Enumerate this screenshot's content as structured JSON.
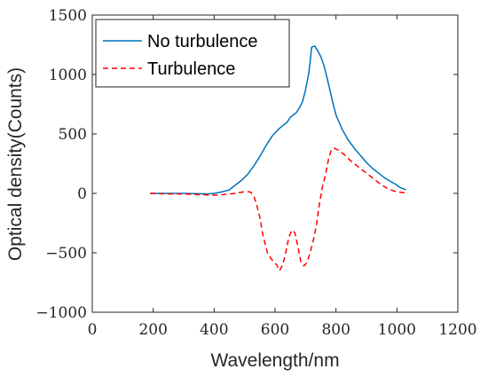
{
  "chart_data": {
    "type": "line",
    "title": "",
    "xlabel": "Wavelength/nm",
    "ylabel": "Optical density(Counts)",
    "xlim": [
      0,
      1200
    ],
    "ylim": [
      -1000,
      1500
    ],
    "xticks": [
      0,
      200,
      400,
      600,
      800,
      1000,
      1200
    ],
    "yticks": [
      -1000,
      -500,
      0,
      500,
      1000,
      1500
    ],
    "xtick_labels": [
      "0",
      "200",
      "400",
      "600",
      "800",
      "1000",
      "1200"
    ],
    "ytick_labels": [
      "−1000",
      "−500",
      "0",
      "500",
      "1000",
      "1500"
    ],
    "grid": false,
    "legend_position": "top-left",
    "series": [
      {
        "name": "No turbulence",
        "color": "#0072BD",
        "line_style": "solid",
        "points": [
          [
            190,
            0
          ],
          [
            250,
            0
          ],
          [
            300,
            0
          ],
          [
            350,
            -3
          ],
          [
            380,
            -5
          ],
          [
            400,
            0
          ],
          [
            430,
            15
          ],
          [
            450,
            30
          ],
          [
            470,
            70
          ],
          [
            490,
            110
          ],
          [
            510,
            160
          ],
          [
            530,
            230
          ],
          [
            550,
            310
          ],
          [
            570,
            400
          ],
          [
            590,
            480
          ],
          [
            600,
            510
          ],
          [
            620,
            560
          ],
          [
            640,
            600
          ],
          [
            650,
            640
          ],
          [
            660,
            660
          ],
          [
            670,
            680
          ],
          [
            680,
            720
          ],
          [
            690,
            770
          ],
          [
            700,
            870
          ],
          [
            710,
            1000
          ],
          [
            715,
            1100
          ],
          [
            720,
            1230
          ],
          [
            730,
            1240
          ],
          [
            740,
            1200
          ],
          [
            750,
            1150
          ],
          [
            760,
            1080
          ],
          [
            770,
            980
          ],
          [
            780,
            870
          ],
          [
            790,
            760
          ],
          [
            800,
            660
          ],
          [
            820,
            540
          ],
          [
            840,
            450
          ],
          [
            860,
            380
          ],
          [
            880,
            320
          ],
          [
            900,
            260
          ],
          [
            920,
            210
          ],
          [
            940,
            170
          ],
          [
            960,
            130
          ],
          [
            980,
            100
          ],
          [
            1000,
            70
          ],
          [
            1010,
            50
          ],
          [
            1020,
            40
          ],
          [
            1030,
            30
          ]
        ]
      },
      {
        "name": "Turbulence",
        "color": "#FF0000",
        "line_style": "dashed",
        "points": [
          [
            190,
            0
          ],
          [
            250,
            -5
          ],
          [
            300,
            -5
          ],
          [
            350,
            -10
          ],
          [
            400,
            -15
          ],
          [
            430,
            -10
          ],
          [
            450,
            -5
          ],
          [
            470,
            0
          ],
          [
            490,
            10
          ],
          [
            510,
            15
          ],
          [
            520,
            10
          ],
          [
            530,
            -20
          ],
          [
            540,
            -100
          ],
          [
            550,
            -200
          ],
          [
            560,
            -350
          ],
          [
            575,
            -500
          ],
          [
            590,
            -560
          ],
          [
            605,
            -600
          ],
          [
            615,
            -650
          ],
          [
            625,
            -600
          ],
          [
            635,
            -500
          ],
          [
            645,
            -370
          ],
          [
            655,
            -310
          ],
          [
            665,
            -330
          ],
          [
            675,
            -450
          ],
          [
            685,
            -580
          ],
          [
            695,
            -610
          ],
          [
            705,
            -580
          ],
          [
            715,
            -500
          ],
          [
            725,
            -400
          ],
          [
            735,
            -280
          ],
          [
            745,
            -100
          ],
          [
            755,
            50
          ],
          [
            765,
            150
          ],
          [
            775,
            280
          ],
          [
            785,
            370
          ],
          [
            795,
            380
          ],
          [
            810,
            360
          ],
          [
            830,
            320
          ],
          [
            850,
            270
          ],
          [
            870,
            230
          ],
          [
            890,
            190
          ],
          [
            910,
            150
          ],
          [
            930,
            110
          ],
          [
            950,
            70
          ],
          [
            970,
            40
          ],
          [
            990,
            20
          ],
          [
            1010,
            10
          ],
          [
            1025,
            5
          ]
        ]
      }
    ]
  }
}
